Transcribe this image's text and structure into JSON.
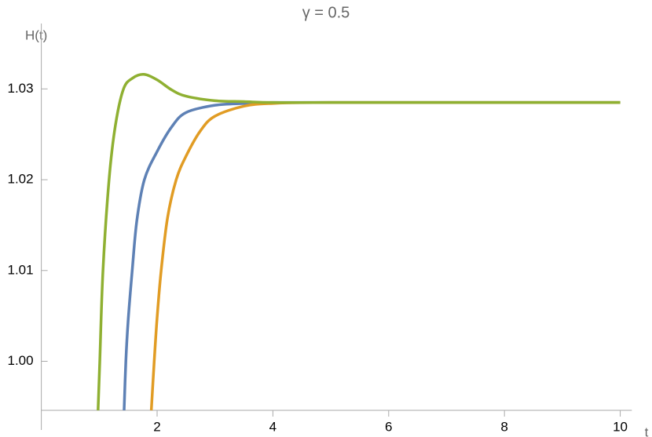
{
  "chart_data": {
    "type": "line",
    "title": "γ = 0.5",
    "y_label": "H(t)",
    "x_label": "t",
    "xlim": [
      0,
      10.2
    ],
    "ylim": [
      0.9946,
      1.0372
    ],
    "xticks": [
      2,
      4,
      6,
      8,
      10
    ],
    "yticks": [
      {
        "value": 1,
        "label": "1.00"
      },
      1.01,
      1.02,
      1.03
    ],
    "series": [
      {
        "color": "#5e81b5",
        "x": [
          1.43,
          1.46,
          1.5,
          1.57,
          1.65,
          1.78,
          2.0,
          2.25,
          2.5,
          3.0,
          3.5,
          4.0,
          5.0,
          10.0
        ],
        "values": [
          0.9946,
          1.0,
          1.0045,
          1.01,
          1.0155,
          1.02,
          1.0231,
          1.0258,
          1.0274,
          1.0282,
          1.0284,
          1.0285,
          1.0285,
          1.0285
        ]
      },
      {
        "color": "#e19c24",
        "x": [
          1.9,
          1.95,
          2.0,
          2.07,
          2.18,
          2.33,
          2.5,
          2.75,
          3.0,
          3.5,
          4.0,
          5.0,
          10.0
        ],
        "values": [
          0.9946,
          1.0,
          1.0048,
          1.01,
          1.0158,
          1.02,
          1.0226,
          1.0254,
          1.027,
          1.0281,
          1.0284,
          1.0285,
          1.0285
        ]
      },
      {
        "color": "#8fb032",
        "x": [
          0.98,
          1.01,
          1.065,
          1.17,
          1.28,
          1.42,
          1.58,
          1.77,
          2.0,
          2.25,
          2.5,
          3.0,
          3.5,
          4.0,
          5.0,
          10.0
        ],
        "values": [
          0.9946,
          1.0,
          1.01,
          1.02,
          1.026,
          1.03,
          1.0312,
          1.0316,
          1.031,
          1.0299,
          1.0292,
          1.0287,
          1.0286,
          1.0285,
          1.0285,
          1.0285
        ]
      }
    ]
  }
}
